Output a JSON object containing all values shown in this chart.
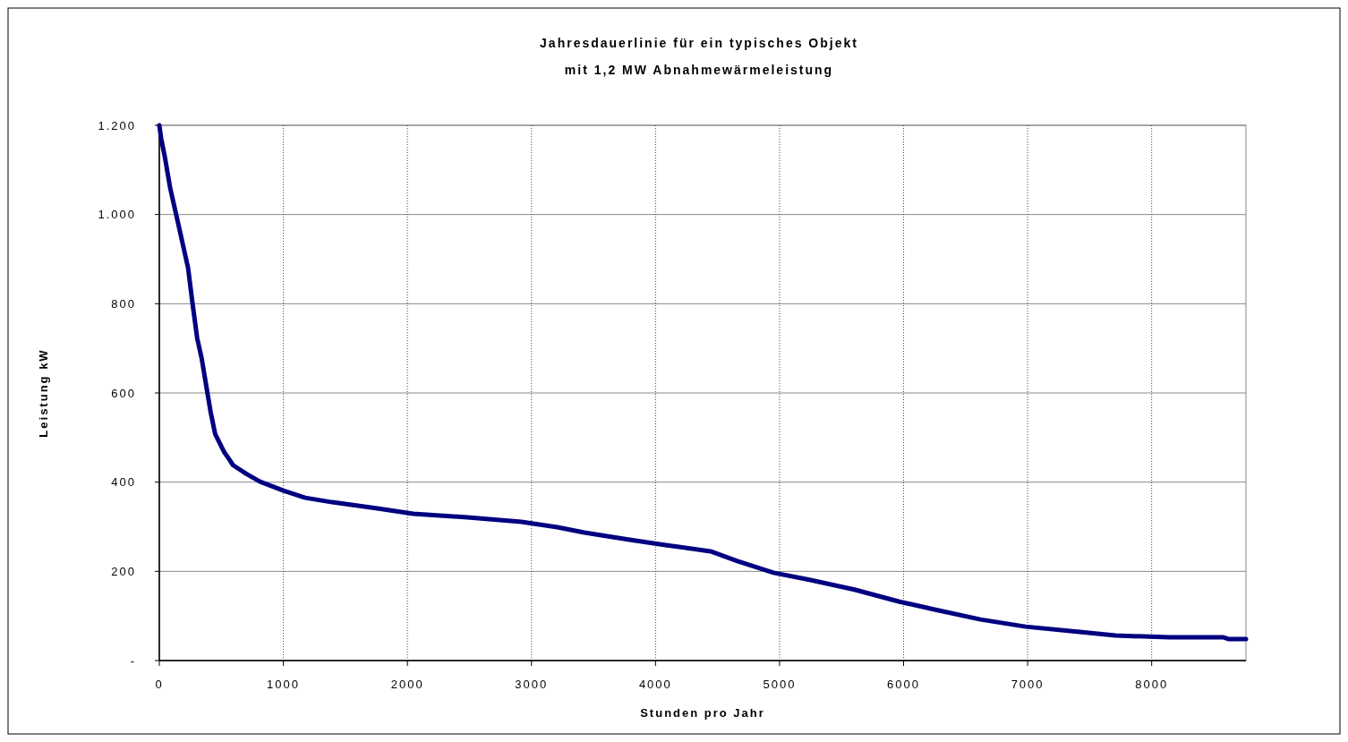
{
  "chart_data": {
    "type": "line",
    "title": "Jahresdauerlinie für ein typisches Objekt",
    "subtitle": "mit 1,2 MW Abnahmewärmeleistung",
    "xlabel": "Stunden pro Jahr",
    "ylabel": "Leistung kW",
    "xlim": [
      0,
      8760
    ],
    "xticks": [
      0,
      1000,
      2000,
      3000,
      4000,
      5000,
      6000,
      7000,
      8000
    ],
    "ylim": [
      0,
      1200
    ],
    "yticks": [
      {
        "value": 0,
        "label": "-"
      },
      200,
      400,
      600,
      800,
      {
        "value": 1000,
        "label": "1.000"
      },
      {
        "value": 1200,
        "label": "1.200"
      }
    ],
    "grid": true,
    "marker": "none",
    "line_style": "solid",
    "series": [
      {
        "color": "#000080",
        "x": [
          0,
          15,
          44,
          87,
          160,
          232,
          268,
          305,
          341,
          377,
          413,
          450,
          522,
          595,
          704,
          812,
          1000,
          1176,
          1394,
          1757,
          2047,
          2483,
          2918,
          3208,
          3426,
          3790,
          4080,
          4443,
          4660,
          4951,
          5241,
          5604,
          5967,
          6258,
          6621,
          6984,
          7419,
          7709,
          8145,
          8580,
          8623,
          8760
        ],
        "values": [
          1200,
          1170,
          1130,
          1060,
          970,
          880,
          800,
          723,
          678,
          618,
          558,
          508,
          468,
          438,
          418,
          401,
          381,
          365,
          355,
          341,
          329,
          321,
          311,
          299,
          287,
          271,
          259,
          245,
          223,
          197,
          181,
          159,
          132,
          114,
          92,
          76,
          64,
          56,
          52,
          52,
          48,
          48
        ]
      }
    ]
  }
}
